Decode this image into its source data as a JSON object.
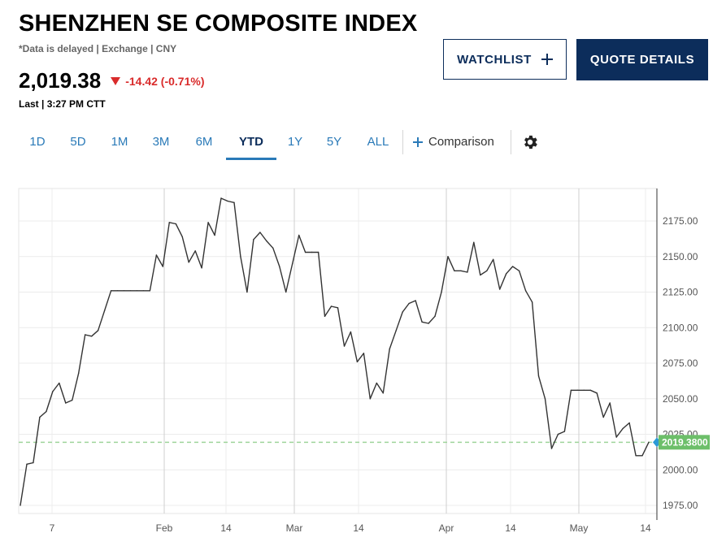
{
  "header": {
    "title": "SHENZHEN SE COMPOSITE INDEX",
    "subline": "*Data is delayed | Exchange | CNY",
    "price": "2,019.38",
    "change": "-14.42 (-0.71%)",
    "last": "Last | 3:27 PM CTT"
  },
  "buttons": {
    "watchlist": "WATCHLIST",
    "quote_details": "QUOTE DETAILS"
  },
  "tabs": [
    "1D",
    "5D",
    "1M",
    "3M",
    "6M",
    "YTD",
    "1Y",
    "5Y",
    "ALL"
  ],
  "active_tab": "YTD",
  "comparison_label": "Comparison",
  "colors": {
    "accent": "#0c2d5b",
    "tab_blue": "#2a7ab8",
    "negative": "#d92b2b",
    "last_price_tag": "#6dbf6a",
    "line": "#333333"
  },
  "chart_data": {
    "type": "line",
    "ylim": [
      1970,
      2190
    ],
    "y_ticks": [
      "1975.00",
      "2000.00",
      "2025.00",
      "2050.00",
      "2075.00",
      "2100.00",
      "2125.00",
      "2150.00",
      "2175.00"
    ],
    "x_ticks": [
      "7",
      "Feb",
      "14",
      "Mar",
      "14",
      "Apr",
      "14",
      "May",
      "14"
    ],
    "last_value_label": "2019.3800",
    "last_value": 2019.38,
    "grid": true,
    "series": [
      {
        "values": [
          1975,
          2004,
          2005,
          2037,
          2041,
          2055,
          2061,
          2047,
          2049,
          2068,
          2095,
          2094,
          2098,
          2112,
          2126,
          2126,
          2126,
          2126,
          2126,
          2126,
          2126,
          2151,
          2143,
          2174,
          2173,
          2164,
          2146,
          2154,
          2142,
          2174,
          2165,
          2191,
          2189,
          2188,
          2150,
          2125,
          2162,
          2167,
          2161,
          2156,
          2143,
          2125,
          2145,
          2165,
          2153,
          2153,
          2153,
          2108,
          2115,
          2114,
          2087,
          2097,
          2076,
          2082,
          2050,
          2061,
          2054,
          2085,
          2098,
          2111,
          2117,
          2119,
          2104,
          2103,
          2108,
          2125,
          2150,
          2140,
          2140,
          2139,
          2160,
          2137,
          2140,
          2148,
          2127,
          2138,
          2143,
          2140,
          2126,
          2118,
          2066,
          2050,
          2015,
          2025,
          2027,
          2056,
          2056,
          2056,
          2056,
          2054,
          2037,
          2047,
          2023,
          2029,
          2033,
          2010,
          2010,
          2019.38
        ]
      }
    ]
  }
}
